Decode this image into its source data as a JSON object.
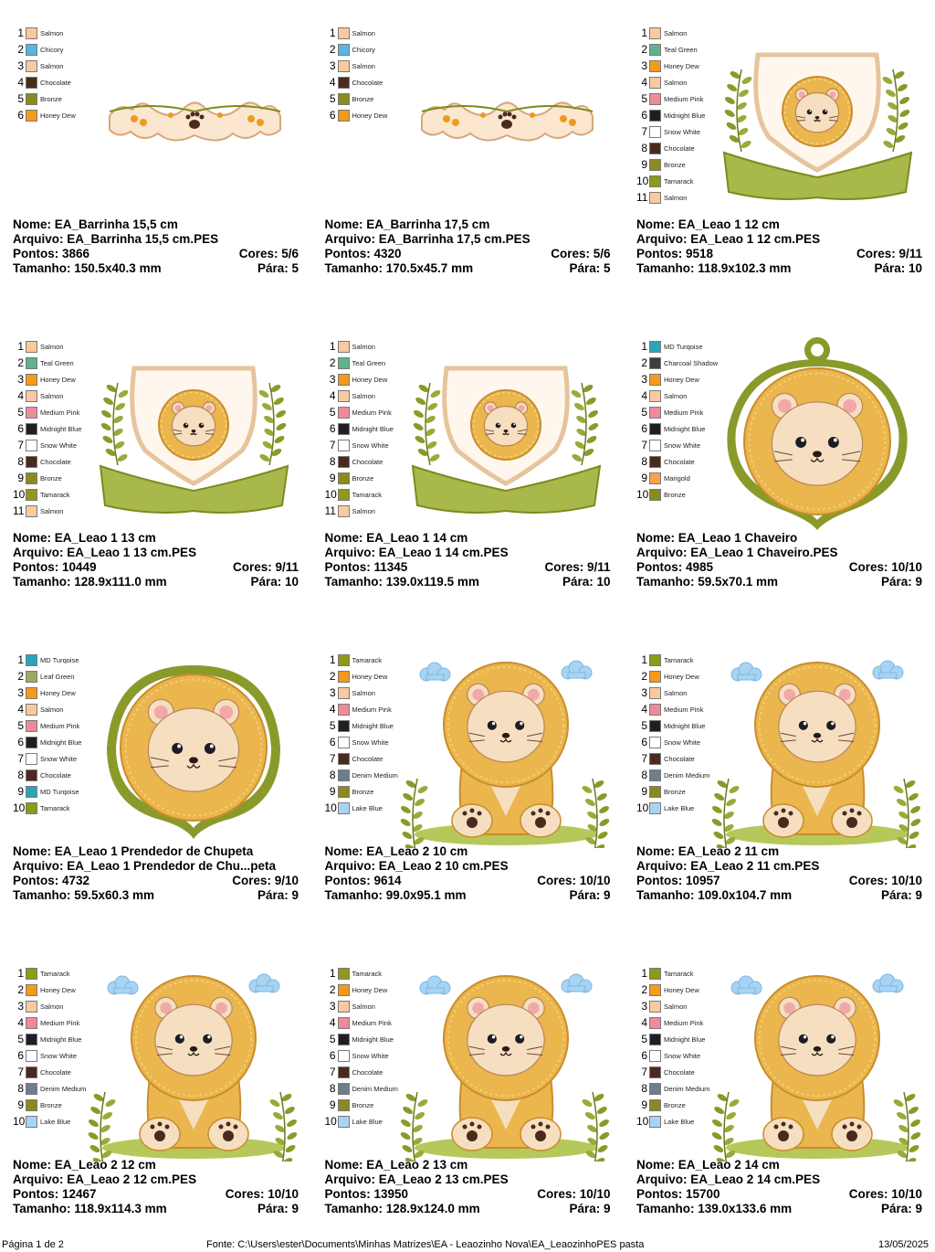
{
  "colors": {
    "Salmon": "#f9c9a0",
    "Chicory": "#5ab4e6",
    "Chocolate": "#4a2a1c",
    "Bronze": "#8a8a1e",
    "Honey Dew": "#f59a1a",
    "Teal Green": "#5fb38a",
    "Medium Pink": "#f08a9a",
    "Midnight Blue": "#1e1e24",
    "Snow White": "#ffffff",
    "Tamarack": "#8e9a18",
    "MD Turqoise": "#2aa5b8",
    "Charcoal Shadow": "#3a3e3c",
    "Marigold": "#f7a24a",
    "Leaf Green": "#9caa60",
    "Denim Medium": "#6e7e8a",
    "Lake Blue": "#a8d4f4"
  },
  "designs": [
    {
      "palette": [
        "Salmon",
        "Chicory",
        "Salmon",
        "Chocolate",
        "Bronze",
        "Honey Dew"
      ],
      "art": "barrinha",
      "nome": "Nome: EA_Barrinha 15,5 cm",
      "arquivo": "Arquivo: EA_Barrinha 15,5 cm.PES",
      "pontos": "Pontos: 3866",
      "cores": "Cores: 5/6",
      "tamanho": "Tamanho: 150.5x40.3 mm",
      "para": "Pára: 5"
    },
    {
      "palette": [
        "Salmon",
        "Chicory",
        "Salmon",
        "Chocolate",
        "Bronze",
        "Honey Dew"
      ],
      "art": "barrinha",
      "nome": "Nome: EA_Barrinha 17,5 cm",
      "arquivo": "Arquivo: EA_Barrinha 17,5 cm.PES",
      "pontos": "Pontos: 4320",
      "cores": "Cores: 5/6",
      "tamanho": "Tamanho: 170.5x45.7 mm",
      "para": "Pára: 5"
    },
    {
      "palette": [
        "Salmon",
        "Teal Green",
        "Honey Dew",
        "Salmon",
        "Medium Pink",
        "Midnight Blue",
        "Snow White",
        "Chocolate",
        "Bronze",
        "Tamarack",
        "Salmon"
      ],
      "art": "shield",
      "nome": "Nome: EA_Leao 1 12 cm",
      "arquivo": "Arquivo: EA_Leao 1 12 cm.PES",
      "pontos": "Pontos: 9518",
      "cores": "Cores: 9/11",
      "tamanho": "Tamanho: 118.9x102.3 mm",
      "para": "Pára: 10"
    },
    {
      "palette": [
        "Salmon",
        "Teal Green",
        "Honey Dew",
        "Salmon",
        "Medium Pink",
        "Midnight Blue",
        "Snow White",
        "Chocolate",
        "Bronze",
        "Tamarack",
        "Salmon"
      ],
      "art": "shield",
      "nome": "Nome: EA_Leao 1 13 cm",
      "arquivo": "Arquivo: EA_Leao 1 13 cm.PES",
      "pontos": "Pontos: 10449",
      "cores": "Cores: 9/11",
      "tamanho": "Tamanho: 128.9x111.0 mm",
      "para": "Pára: 10"
    },
    {
      "palette": [
        "Salmon",
        "Teal Green",
        "Honey Dew",
        "Salmon",
        "Medium Pink",
        "Midnight Blue",
        "Snow White",
        "Chocolate",
        "Bronze",
        "Tamarack",
        "Salmon"
      ],
      "art": "shield",
      "nome": "Nome: EA_Leao 1 14 cm",
      "arquivo": "Arquivo: EA_Leao 1 14 cm.PES",
      "pontos": "Pontos: 11345",
      "cores": "Cores: 9/11",
      "tamanho": "Tamanho: 139.0x119.5 mm",
      "para": "Pára: 10"
    },
    {
      "palette": [
        "MD Turqoise",
        "Charcoal Shadow",
        "Honey Dew",
        "Salmon",
        "Medium Pink",
        "Midnight Blue",
        "Snow White",
        "Chocolate",
        "Marigold",
        "Bronze"
      ],
      "art": "keychain",
      "nome": "Nome: EA_Leao 1 Chaveiro",
      "arquivo": "Arquivo: EA_Leao 1 Chaveiro.PES",
      "pontos": "Pontos: 4985",
      "cores": "Cores: 10/10",
      "tamanho": "Tamanho: 59.5x70.1 mm",
      "para": "Pára: 9"
    },
    {
      "palette": [
        "MD Turqoise",
        "Leaf Green",
        "Honey Dew",
        "Salmon",
        "Medium Pink",
        "Midnight Blue",
        "Snow White",
        "Chocolate",
        "MD Turqoise",
        "Tamarack"
      ],
      "art": "pacifier",
      "nome": "Nome: EA_Leao 1 Prendedor de Chupeta",
      "arquivo": "Arquivo: EA_Leao 1 Prendedor de Chu...peta",
      "pontos": "Pontos: 4732",
      "cores": "Cores: 9/10",
      "tamanho": "Tamanho: 59.5x60.3 mm",
      "para": "Pára: 9"
    },
    {
      "palette": [
        "Tamarack",
        "Honey Dew",
        "Salmon",
        "Medium Pink",
        "Midnight Blue",
        "Snow White",
        "Chocolate",
        "Denim Medium",
        "Bronze",
        "Lake Blue"
      ],
      "art": "sitting",
      "nome": "Nome: EA_Leao 2 10 cm",
      "arquivo": "Arquivo: EA_Leao 2 10 cm.PES",
      "pontos": "Pontos: 9614",
      "cores": "Cores: 10/10",
      "tamanho": "Tamanho: 99.0x95.1 mm",
      "para": "Pára: 9"
    },
    {
      "palette": [
        "Tamarack",
        "Honey Dew",
        "Salmon",
        "Medium Pink",
        "Midnight Blue",
        "Snow White",
        "Chocolate",
        "Denim Medium",
        "Bronze",
        "Lake Blue"
      ],
      "art": "sitting",
      "nome": "Nome: EA_Leao 2 11 cm",
      "arquivo": "Arquivo: EA_Leao 2 11 cm.PES",
      "pontos": "Pontos: 10957",
      "cores": "Cores: 10/10",
      "tamanho": "Tamanho: 109.0x104.7 mm",
      "para": "Pára: 9"
    },
    {
      "palette": [
        "Tamarack",
        "Honey Dew",
        "Salmon",
        "Medium Pink",
        "Midnight Blue",
        "Snow White",
        "Chocolate",
        "Denim Medium",
        "Bronze",
        "Lake Blue"
      ],
      "art": "sitting",
      "nome": "Nome: EA_Leao 2 12 cm",
      "arquivo": "Arquivo: EA_Leao 2 12 cm.PES",
      "pontos": "Pontos: 12467",
      "cores": "Cores: 10/10",
      "tamanho": "Tamanho: 118.9x114.3 mm",
      "para": "Pára: 9"
    },
    {
      "palette": [
        "Tamarack",
        "Honey Dew",
        "Salmon",
        "Medium Pink",
        "Midnight Blue",
        "Snow White",
        "Chocolate",
        "Denim Medium",
        "Bronze",
        "Lake Blue"
      ],
      "art": "sitting",
      "nome": "Nome: EA_Leao 2 13 cm",
      "arquivo": "Arquivo: EA_Leao 2 13 cm.PES",
      "pontos": "Pontos: 13950",
      "cores": "Cores: 10/10",
      "tamanho": "Tamanho: 128.9x124.0 mm",
      "para": "Pára: 9"
    },
    {
      "palette": [
        "Tamarack",
        "Honey Dew",
        "Salmon",
        "Medium Pink",
        "Midnight Blue",
        "Snow White",
        "Chocolate",
        "Denim Medium",
        "Bronze",
        "Lake Blue"
      ],
      "art": "sitting",
      "nome": "Nome: EA_Leao 2 14 cm",
      "arquivo": "Arquivo: EA_Leao 2 14 cm.PES",
      "pontos": "Pontos: 15700",
      "cores": "Cores: 10/10",
      "tamanho": "Tamanho: 139.0x133.6 mm",
      "para": "Pára: 9"
    }
  ],
  "footer": {
    "page": "Página 1 de 2",
    "source": "Fonte: C:\\Users\\ester\\Documents\\Minhas Matrizes\\EA - Leaozinho Nova\\EA_LeaozinhoPES pasta",
    "date": "13/05/2025"
  }
}
